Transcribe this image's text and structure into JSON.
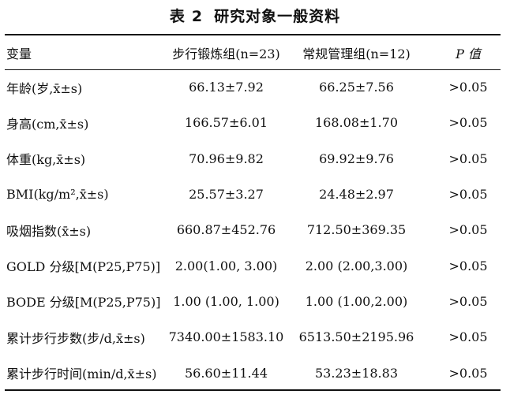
{
  "title": {
    "label": "表",
    "number": "2",
    "text": "研究对象一般资料"
  },
  "headers": {
    "variable": "变量",
    "group1": "步行锻炼组(n=23)",
    "group2": "常规管理组(n=12)",
    "p": "P 值"
  },
  "rows": [
    {
      "variable": "年龄(岁,x̄±s)",
      "group1": "66.13±7.92",
      "group2": "66.25±7.56",
      "p": ">0.05"
    },
    {
      "variable": "身高(cm,x̄±s)",
      "group1": "166.57±6.01",
      "group2": "168.08±1.70",
      "p": ">0.05"
    },
    {
      "variable": "体重(kg,x̄±s)",
      "group1": "70.96±9.82",
      "group2": "69.92±9.76",
      "p": ">0.05"
    },
    {
      "variable": "BMI(kg/m²,x̄±s)",
      "group1": "25.57±3.27",
      "group2": "24.48±2.97",
      "p": ">0.05"
    },
    {
      "variable": "吸烟指数(x̄±s)",
      "group1": "660.87±452.76",
      "group2": "712.50±369.35",
      "p": ">0.05"
    },
    {
      "variable": "GOLD 分级[M(P25,P75)]",
      "group1": "2.00(1.00, 3.00)",
      "group2": "2.00 (2.00,3.00)",
      "p": ">0.05"
    },
    {
      "variable": "BODE 分级[M(P25,P75)]",
      "group1": "1.00 (1.00, 1.00)",
      "group2": "1.00 (1.00,2.00)",
      "p": ">0.05"
    },
    {
      "variable": "累计步行步数(步/d,x̄±s)",
      "group1": "7340.00±1583.10",
      "group2": "6513.50±2195.96",
      "p": ">0.05"
    },
    {
      "variable": "累计步行时间(min/d,x̄±s)",
      "group1": "56.60±11.44",
      "group2": "53.23±18.83",
      "p": ">0.05"
    }
  ]
}
